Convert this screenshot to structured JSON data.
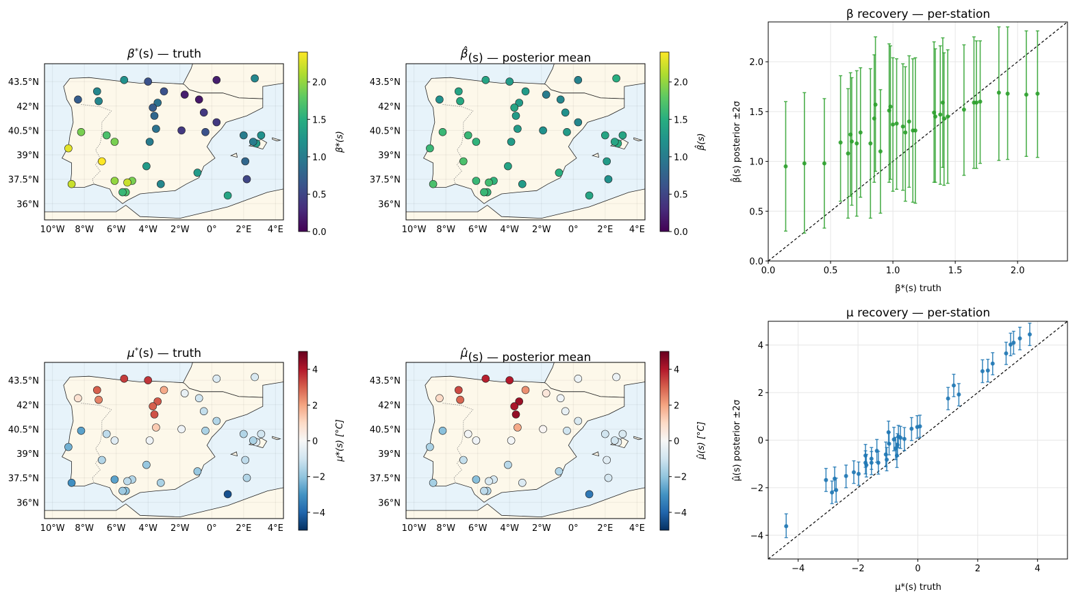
{
  "colors": {
    "sea": "#e7f3fa",
    "land": "#fdf8ea",
    "coast": "#222222",
    "border": "#777777",
    "beta_err": "#2ca02c",
    "mu_err": "#1f77b4",
    "grid": "#e6e6e6"
  },
  "map_axes": {
    "x_ticks": [
      "10°W",
      "8°W",
      "6°W",
      "4°W",
      "2°W",
      "0°",
      "2°E",
      "4°E"
    ],
    "y_ticks": [
      "43.5°N",
      "42°N",
      "40.5°N",
      "39°N",
      "37.5°N",
      "36°N"
    ]
  },
  "stations": [
    {
      "lon": -8.4,
      "lat": 42.4,
      "beta": 0.7,
      "mu": 0.8,
      "beta_hat": 1.2,
      "mu_hat": 1.0
    },
    {
      "lon": -7.2,
      "lat": 42.9,
      "beta": 1.1,
      "mu": 3.0,
      "beta_hat": 1.4,
      "mu_hat": 3.3
    },
    {
      "lon": -7.1,
      "lat": 42.3,
      "beta": 1.1,
      "mu": 2.5,
      "beta_hat": 1.45,
      "mu_hat": 2.9
    },
    {
      "lon": -5.5,
      "lat": 43.6,
      "beta": 1.2,
      "mu": 3.5,
      "beta_hat": 1.4,
      "mu_hat": 3.9
    },
    {
      "lon": -4.0,
      "lat": 43.5,
      "beta": 0.6,
      "mu": 3.6,
      "beta_hat": 1.3,
      "mu_hat": 4.0
    },
    {
      "lon": -3.4,
      "lat": 42.2,
      "beta": 0.9,
      "mu": 3.1,
      "beta_hat": 1.3,
      "mu_hat": 4.3
    },
    {
      "lon": -3.7,
      "lat": 41.9,
      "beta": 0.7,
      "mu": 3.0,
      "beta_hat": 1.4,
      "mu_hat": 4.1
    },
    {
      "lon": -3.6,
      "lat": 41.4,
      "beta": 0.8,
      "mu": 3.2,
      "beta_hat": 1.3,
      "mu_hat": 4.4
    },
    {
      "lon": -3.0,
      "lat": 42.9,
      "beta": 0.6,
      "mu": 1.9,
      "beta_hat": 1.3,
      "mu_hat": 2.3
    },
    {
      "lon": -1.7,
      "lat": 42.7,
      "beta": 0.2,
      "mu": -0.4,
      "beta_hat": 1.0,
      "mu_hat": 0.6
    },
    {
      "lon": 0.3,
      "lat": 43.6,
      "beta": 0.2,
      "mu": -0.7,
      "beta_hat": 1.05,
      "mu_hat": -0.3
    },
    {
      "lon": 2.7,
      "lat": 43.7,
      "beta": 1.1,
      "mu": -0.8,
      "beta_hat": 1.5,
      "mu_hat": -0.3
    },
    {
      "lon": -0.8,
      "lat": 42.4,
      "beta": 0.15,
      "mu": -1.0,
      "beta_hat": 1.1,
      "mu_hat": -0.2
    },
    {
      "lon": -0.5,
      "lat": 41.6,
      "beta": 0.4,
      "mu": -1.2,
      "beta_hat": 1.2,
      "mu_hat": -0.4
    },
    {
      "lon": 0.3,
      "lat": 41.0,
      "beta": 0.4,
      "mu": -1.5,
      "beta_hat": 1.1,
      "mu_hat": -0.8
    },
    {
      "lon": -0.4,
      "lat": 40.4,
      "beta": 0.6,
      "mu": -1.6,
      "beta_hat": 1.3,
      "mu_hat": -1.0
    },
    {
      "lon": -1.9,
      "lat": 40.5,
      "beta": 0.4,
      "mu": -0.2,
      "beta_hat": 1.2,
      "mu_hat": 0.1
    },
    {
      "lon": -3.5,
      "lat": 40.6,
      "beta": 0.9,
      "mu": 1.3,
      "beta_hat": 1.3,
      "mu_hat": 1.9
    },
    {
      "lon": -3.9,
      "lat": 39.8,
      "beta": 1.0,
      "mu": -0.2,
      "beta_hat": 1.3,
      "mu_hat": -0.1
    },
    {
      "lon": -4.1,
      "lat": 38.3,
      "beta": 1.3,
      "mu": -1.9,
      "beta_hat": 1.4,
      "mu_hat": -1.4
    },
    {
      "lon": -3.2,
      "lat": 37.2,
      "beta": 1.1,
      "mu": -1.6,
      "beta_hat": 1.3,
      "mu_hat": -0.7
    },
    {
      "lon": -5.0,
      "lat": 37.4,
      "beta": 1.9,
      "mu": -1.5,
      "beta_hat": 1.55,
      "mu_hat": -0.9
    },
    {
      "lon": -5.3,
      "lat": 37.3,
      "beta": 2.2,
      "mu": -1.3,
      "beta_hat": 1.65,
      "mu_hat": -0.8
    },
    {
      "lon": -5.4,
      "lat": 36.7,
      "beta": 1.7,
      "mu": -2.1,
      "beta_hat": 1.58,
      "mu_hat": -1.5
    },
    {
      "lon": -5.6,
      "lat": 36.7,
      "beta": 1.6,
      "mu": -1.8,
      "beta_hat": 1.6,
      "mu_hat": -1.3
    },
    {
      "lon": -6.1,
      "lat": 37.4,
      "beta": 2.0,
      "mu": -2.7,
      "beta_hat": 1.6,
      "mu_hat": -2.1
    },
    {
      "lon": -6.9,
      "lat": 38.6,
      "beta": 2.4,
      "mu": -1.5,
      "beta_hat": 1.7,
      "mu_hat": -1.2
    },
    {
      "lon": -6.1,
      "lat": 39.8,
      "beta": 1.9,
      "mu": -0.6,
      "beta_hat": 1.55,
      "mu_hat": -0.2
    },
    {
      "lon": -6.6,
      "lat": 40.2,
      "beta": 1.7,
      "mu": -1.3,
      "beta_hat": 1.6,
      "mu_hat": -0.1
    },
    {
      "lon": -8.2,
      "lat": 40.4,
      "beta": 1.9,
      "mu": -2.7,
      "beta_hat": 1.6,
      "mu_hat": -2.1
    },
    {
      "lon": -9.0,
      "lat": 39.4,
      "beta": 2.3,
      "mu": -2.4,
      "beta_hat": 1.6,
      "mu_hat": -1.6
    },
    {
      "lon": -8.8,
      "lat": 37.2,
      "beta": 2.2,
      "mu": -3.1,
      "beta_hat": 1.7,
      "mu_hat": -1.7
    },
    {
      "lon": -0.9,
      "lat": 37.9,
      "beta": 1.3,
      "mu": -1.9,
      "beta_hat": 1.5,
      "mu_hat": -1.5
    },
    {
      "lon": 2.1,
      "lat": 38.6,
      "beta": 0.8,
      "mu": -1.3,
      "beta_hat": 1.3,
      "mu_hat": -0.6
    },
    {
      "lon": 2.2,
      "lat": 37.5,
      "beta": 0.5,
      "mu": -1.5,
      "beta_hat": 1.2,
      "mu_hat": -0.9
    },
    {
      "lon": 1.0,
      "lat": 36.5,
      "beta": 1.4,
      "mu": -4.4,
      "beta_hat": 1.4,
      "mu_hat": -3.6
    },
    {
      "lon": 2.0,
      "lat": 40.2,
      "beta": 1.0,
      "mu": -1.5,
      "beta_hat": 1.4,
      "mu_hat": -1.0
    },
    {
      "lon": 3.1,
      "lat": 40.2,
      "beta": 1.2,
      "mu": -1.0,
      "beta_hat": 1.4,
      "mu_hat": -0.8
    },
    {
      "lon": 2.8,
      "lat": 39.7,
      "beta": 1.3,
      "mu": -0.6,
      "beta_hat": 1.5,
      "mu_hat": -0.6
    },
    {
      "lon": 2.6,
      "lat": 39.8,
      "beta": 1.0,
      "mu": -1.6,
      "beta_hat": 1.4,
      "mu_hat": -1.0
    }
  ],
  "panels": {
    "beta_truth": {
      "title_main": "β",
      "title_sup": "*",
      "title_rest": "(s) — truth",
      "cbar_label": "β*(s)",
      "cbar_ticks": [
        "0.0",
        "0.5",
        "1.0",
        "1.5",
        "2.0"
      ]
    },
    "beta_post": {
      "title_main": "β̂",
      "title_sup": "",
      "title_rest": "(s) — posterior mean",
      "cbar_label": "β̂(s)",
      "cbar_ticks": [
        "0.0",
        "0.5",
        "1.0",
        "1.5",
        "2.0"
      ]
    },
    "mu_truth": {
      "title_main": "μ",
      "title_sup": "*",
      "title_rest": "(s) — truth",
      "cbar_label": "μ*(s) [°C]",
      "cbar_ticks": [
        "−4",
        "−2",
        "0",
        "2",
        "4"
      ]
    },
    "mu_post": {
      "title_main": "μ̂",
      "title_sup": "",
      "title_rest": "(s) — posterior mean",
      "cbar_label": "μ̂(s) [°C]",
      "cbar_ticks": [
        "−4",
        "−2",
        "0",
        "2",
        "4"
      ]
    }
  },
  "chart_data": [
    {
      "type": "scatter",
      "title": "β recovery — per-station",
      "xlabel": "β*(s) truth",
      "ylabel": "β̂(s) posterior ±2σ",
      "xlim": [
        0.0,
        2.4
      ],
      "ylim": [
        0.0,
        2.4
      ],
      "x_ticks": [
        "0.0",
        "0.5",
        "1.0",
        "1.5",
        "2.0"
      ],
      "y_ticks": [
        "0.0",
        "0.5",
        "1.0",
        "1.5",
        "2.0"
      ],
      "points": [
        {
          "x": 0.14,
          "y": 0.95,
          "lo": 0.3,
          "hi": 1.6
        },
        {
          "x": 0.29,
          "y": 0.98,
          "lo": 0.28,
          "hi": 1.69
        },
        {
          "x": 0.45,
          "y": 0.98,
          "lo": 0.33,
          "hi": 1.63
        },
        {
          "x": 0.58,
          "y": 1.19,
          "lo": 0.6,
          "hi": 1.86
        },
        {
          "x": 0.64,
          "y": 1.08,
          "lo": 0.43,
          "hi": 1.73
        },
        {
          "x": 0.66,
          "y": 1.27,
          "lo": 0.65,
          "hi": 1.89
        },
        {
          "x": 0.67,
          "y": 1.2,
          "lo": 0.56,
          "hi": 1.84
        },
        {
          "x": 0.71,
          "y": 1.18,
          "lo": 0.45,
          "hi": 1.91
        },
        {
          "x": 0.74,
          "y": 1.29,
          "lo": 0.64,
          "hi": 1.94
        },
        {
          "x": 0.82,
          "y": 1.18,
          "lo": 0.43,
          "hi": 1.93
        },
        {
          "x": 0.85,
          "y": 1.43,
          "lo": 0.79,
          "hi": 2.07
        },
        {
          "x": 0.86,
          "y": 1.57,
          "lo": 0.9,
          "hi": 2.25
        },
        {
          "x": 0.9,
          "y": 1.1,
          "lo": 0.48,
          "hi": 1.72
        },
        {
          "x": 0.97,
          "y": 1.51,
          "lo": 0.79,
          "hi": 2.18
        },
        {
          "x": 0.98,
          "y": 1.55,
          "lo": 0.82,
          "hi": 2.16
        },
        {
          "x": 1.0,
          "y": 1.37,
          "lo": 0.7,
          "hi": 2.04
        },
        {
          "x": 1.03,
          "y": 1.38,
          "lo": 0.72,
          "hi": 2.03
        },
        {
          "x": 1.08,
          "y": 1.35,
          "lo": 0.71,
          "hi": 1.98
        },
        {
          "x": 1.1,
          "y": 1.29,
          "lo": 0.6,
          "hi": 1.95
        },
        {
          "x": 1.13,
          "y": 1.4,
          "lo": 0.74,
          "hi": 2.06
        },
        {
          "x": 1.16,
          "y": 1.31,
          "lo": 0.59,
          "hi": 2.03
        },
        {
          "x": 1.18,
          "y": 1.31,
          "lo": 0.58,
          "hi": 2.04
        },
        {
          "x": 1.33,
          "y": 1.49,
          "lo": 0.79,
          "hi": 2.2
        },
        {
          "x": 1.34,
          "y": 1.45,
          "lo": 0.79,
          "hi": 2.13
        },
        {
          "x": 1.38,
          "y": 1.47,
          "lo": 0.77,
          "hi": 2.16
        },
        {
          "x": 1.4,
          "y": 1.59,
          "lo": 0.94,
          "hi": 2.24
        },
        {
          "x": 1.41,
          "y": 1.43,
          "lo": 0.76,
          "hi": 2.09
        },
        {
          "x": 1.44,
          "y": 1.45,
          "lo": 0.78,
          "hi": 2.12
        },
        {
          "x": 1.57,
          "y": 1.52,
          "lo": 0.86,
          "hi": 2.17
        },
        {
          "x": 1.65,
          "y": 1.59,
          "lo": 0.93,
          "hi": 2.25
        },
        {
          "x": 1.67,
          "y": 1.59,
          "lo": 0.93,
          "hi": 2.21
        },
        {
          "x": 1.7,
          "y": 1.6,
          "lo": 0.98,
          "hi": 2.21
        },
        {
          "x": 1.85,
          "y": 1.69,
          "lo": 1.01,
          "hi": 2.35
        },
        {
          "x": 1.92,
          "y": 1.68,
          "lo": 1.02,
          "hi": 2.35
        },
        {
          "x": 2.07,
          "y": 1.67,
          "lo": 1.05,
          "hi": 2.31
        },
        {
          "x": 2.16,
          "y": 1.68,
          "lo": 1.04,
          "hi": 2.31
        }
      ]
    },
    {
      "type": "scatter",
      "title": "μ recovery — per-station",
      "xlabel": "μ*(s) truth",
      "ylabel": "μ̂(s) posterior ±2σ",
      "xlim": [
        -5.0,
        5.0
      ],
      "ylim": [
        -5.0,
        5.0
      ],
      "x_ticks": [
        "−4",
        "−2",
        "0",
        "2",
        "4"
      ],
      "y_ticks": [
        "−4",
        "−2",
        "0",
        "2",
        "4"
      ],
      "points": [
        {
          "x": -4.4,
          "y": -3.62,
          "lo": -4.1,
          "hi": -3.1
        },
        {
          "x": -3.07,
          "y": -1.68,
          "lo": -2.16,
          "hi": -1.19
        },
        {
          "x": -2.87,
          "y": -2.2,
          "lo": -2.67,
          "hi": -1.72
        },
        {
          "x": -2.78,
          "y": -1.62,
          "lo": -2.13,
          "hi": -1.13
        },
        {
          "x": -2.73,
          "y": -2.1,
          "lo": -2.61,
          "hi": -1.6
        },
        {
          "x": -2.4,
          "y": -1.51,
          "lo": -2.0,
          "hi": -1.05
        },
        {
          "x": -2.14,
          "y": -1.35,
          "lo": -1.82,
          "hi": -0.87
        },
        {
          "x": -1.98,
          "y": -1.42,
          "lo": -1.9,
          "hi": -0.92
        },
        {
          "x": -1.75,
          "y": -0.65,
          "lo": -1.14,
          "hi": -0.18
        },
        {
          "x": -1.75,
          "y": -0.95,
          "lo": -1.42,
          "hi": -0.45
        },
        {
          "x": -1.72,
          "y": -1.05,
          "lo": -1.55,
          "hi": -0.6
        },
        {
          "x": -1.55,
          "y": -0.78,
          "lo": -1.23,
          "hi": -0.31
        },
        {
          "x": -1.55,
          "y": -0.95,
          "lo": -1.45,
          "hi": -0.48
        },
        {
          "x": -1.37,
          "y": -0.45,
          "lo": -0.93,
          "hi": 0.03
        },
        {
          "x": -1.32,
          "y": -0.95,
          "lo": -1.43,
          "hi": -0.47
        },
        {
          "x": -1.07,
          "y": -0.6,
          "lo": -1.12,
          "hi": -0.08
        },
        {
          "x": -1.04,
          "y": -0.82,
          "lo": -1.29,
          "hi": -0.31
        },
        {
          "x": -0.98,
          "y": 0.33,
          "lo": -0.15,
          "hi": 0.8
        },
        {
          "x": -0.96,
          "y": -0.15,
          "lo": -0.62,
          "hi": 0.33
        },
        {
          "x": -0.8,
          "y": 0.03,
          "lo": -0.45,
          "hi": 0.54
        },
        {
          "x": -0.74,
          "y": -0.35,
          "lo": -0.82,
          "hi": 0.12
        },
        {
          "x": -0.7,
          "y": -0.65,
          "lo": -1.15,
          "hi": -0.13
        },
        {
          "x": -0.68,
          "y": -0.2,
          "lo": -0.67,
          "hi": 0.27
        },
        {
          "x": -0.65,
          "y": 0.15,
          "lo": -0.32,
          "hi": 0.62
        },
        {
          "x": -0.58,
          "y": 0.1,
          "lo": -0.35,
          "hi": 0.58
        },
        {
          "x": -0.45,
          "y": 0.05,
          "lo": -0.44,
          "hi": 0.53
        },
        {
          "x": -0.21,
          "y": 0.48,
          "lo": -0.02,
          "hi": 0.95
        },
        {
          "x": -0.02,
          "y": 0.55,
          "lo": 0.08,
          "hi": 1.03
        },
        {
          "x": 0.07,
          "y": 0.58,
          "lo": 0.12,
          "hi": 1.05
        },
        {
          "x": 1.01,
          "y": 1.75,
          "lo": 1.28,
          "hi": 2.22
        },
        {
          "x": 1.2,
          "y": 2.3,
          "lo": 1.83,
          "hi": 2.77
        },
        {
          "x": 1.37,
          "y": 1.92,
          "lo": 1.44,
          "hi": 2.38
        },
        {
          "x": 2.16,
          "y": 2.9,
          "lo": 2.42,
          "hi": 3.38
        },
        {
          "x": 2.34,
          "y": 2.93,
          "lo": 2.45,
          "hi": 3.4
        },
        {
          "x": 2.5,
          "y": 3.22,
          "lo": 2.75,
          "hi": 3.68
        },
        {
          "x": 2.95,
          "y": 3.65,
          "lo": 3.18,
          "hi": 4.12
        },
        {
          "x": 3.1,
          "y": 4.02,
          "lo": 3.55,
          "hi": 4.5
        },
        {
          "x": 3.2,
          "y": 4.1,
          "lo": 3.62,
          "hi": 4.58
        },
        {
          "x": 3.41,
          "y": 4.28,
          "lo": 3.8,
          "hi": 4.75
        },
        {
          "x": 3.74,
          "y": 4.45,
          "lo": 3.98,
          "hi": 4.92
        }
      ]
    }
  ]
}
